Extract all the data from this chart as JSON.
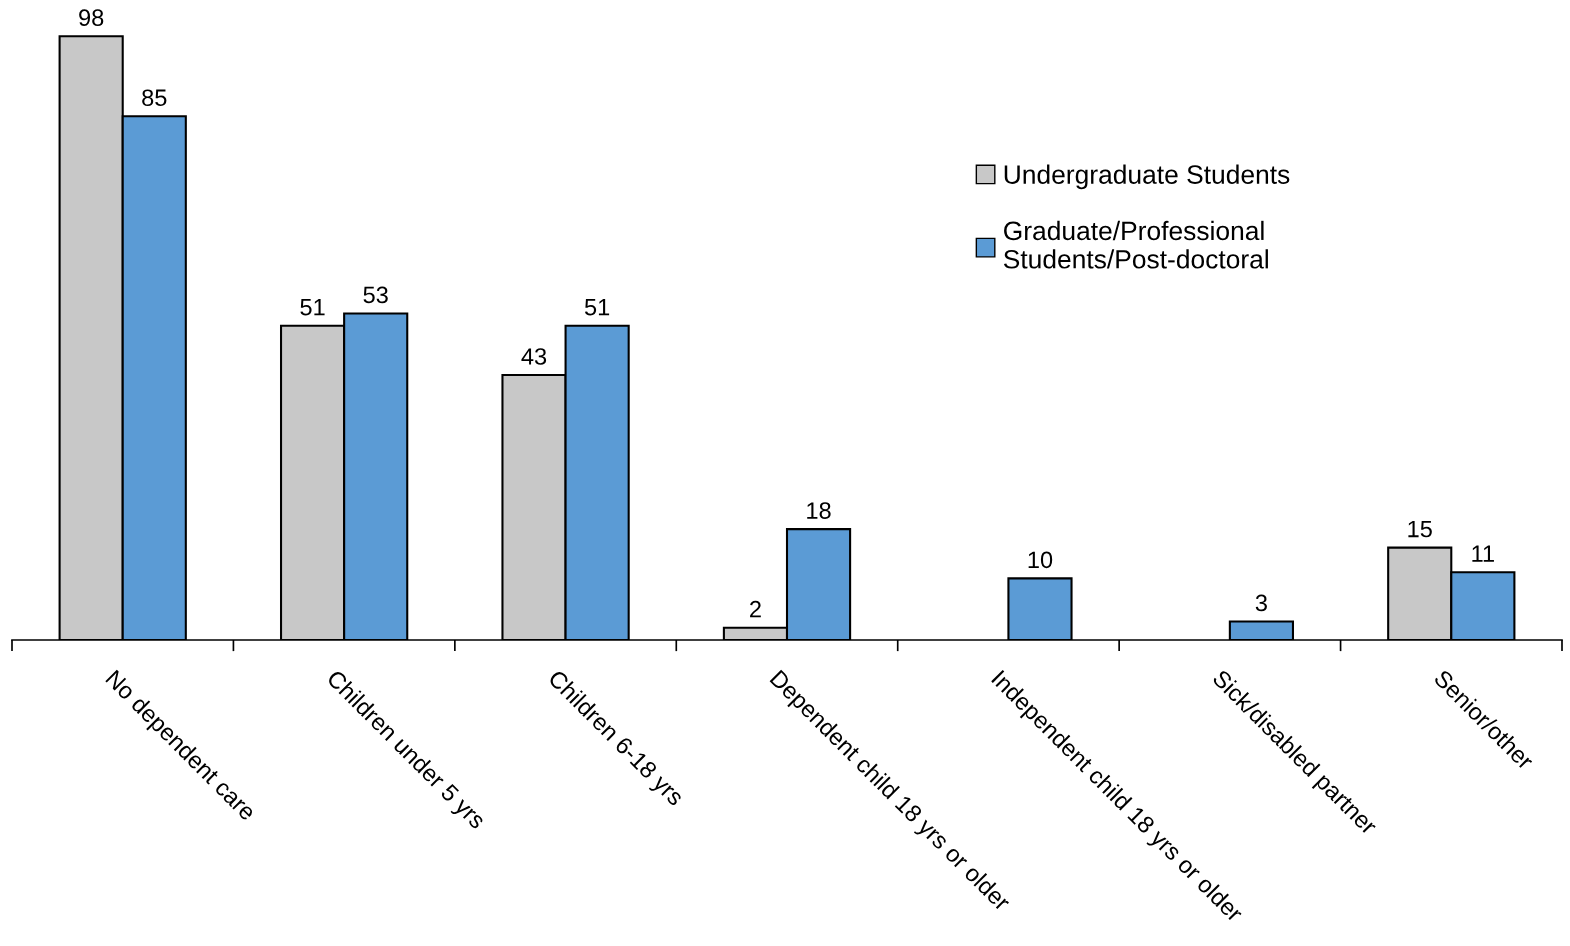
{
  "chart_data": {
    "type": "bar",
    "categories": [
      "No dependent care",
      "Children under 5 yrs",
      "Children 6-18 yrs",
      "Dependent child 18 yrs or older",
      "Independent child 18 yrs or older",
      "Sick/disabled partner",
      "Senior/other"
    ],
    "series": [
      {
        "name": "Undergraduate Students",
        "color": "#c8c8c8",
        "values": [
          98,
          51,
          43,
          2,
          null,
          null,
          15
        ]
      },
      {
        "name": "Graduate/Professional\nStudents/Post-doctoral",
        "color": "#5b9bd5",
        "values": [
          85,
          53,
          51,
          18,
          10,
          3,
          11
        ]
      }
    ],
    "tick_labels": "x",
    "data_labels": true,
    "legend": "top right",
    "grid": false
  }
}
